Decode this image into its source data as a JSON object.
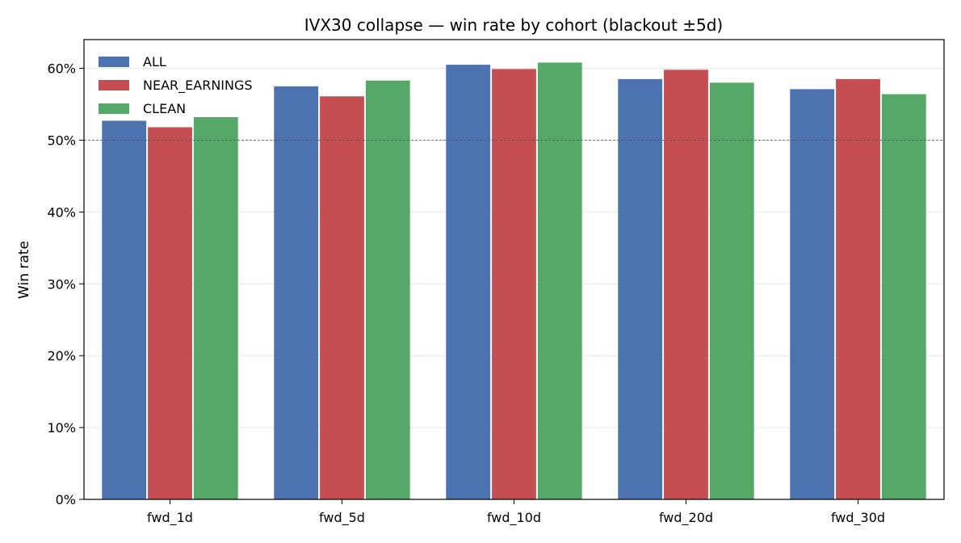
{
  "chart_data": {
    "type": "bar",
    "title": "IVX30 collapse — win rate by cohort (blackout ±5d)",
    "xlabel": "",
    "ylabel": "Win rate",
    "categories": [
      "fwd_1d",
      "fwd_5d",
      "fwd_10d",
      "fwd_20d",
      "fwd_30d"
    ],
    "series": [
      {
        "name": "ALL",
        "color": "#4c72b0",
        "values": [
          0.527,
          0.575,
          0.605,
          0.585,
          0.571
        ]
      },
      {
        "name": "NEAR_EARNINGS",
        "color": "#c44e52",
        "values": [
          0.518,
          0.561,
          0.599,
          0.598,
          0.585
        ]
      },
      {
        "name": "CLEAN",
        "color": "#55a868",
        "values": [
          0.532,
          0.583,
          0.608,
          0.58,
          0.564
        ]
      }
    ],
    "ylim": [
      0,
      0.64
    ],
    "yticks": [
      0,
      0.1,
      0.2,
      0.3,
      0.4,
      0.5,
      0.6
    ],
    "ytick_labels": [
      "0%",
      "10%",
      "20%",
      "30%",
      "40%",
      "50%",
      "60%"
    ],
    "reference_line": 0.5,
    "grid": "horizontal",
    "legend_position": "top-left"
  }
}
